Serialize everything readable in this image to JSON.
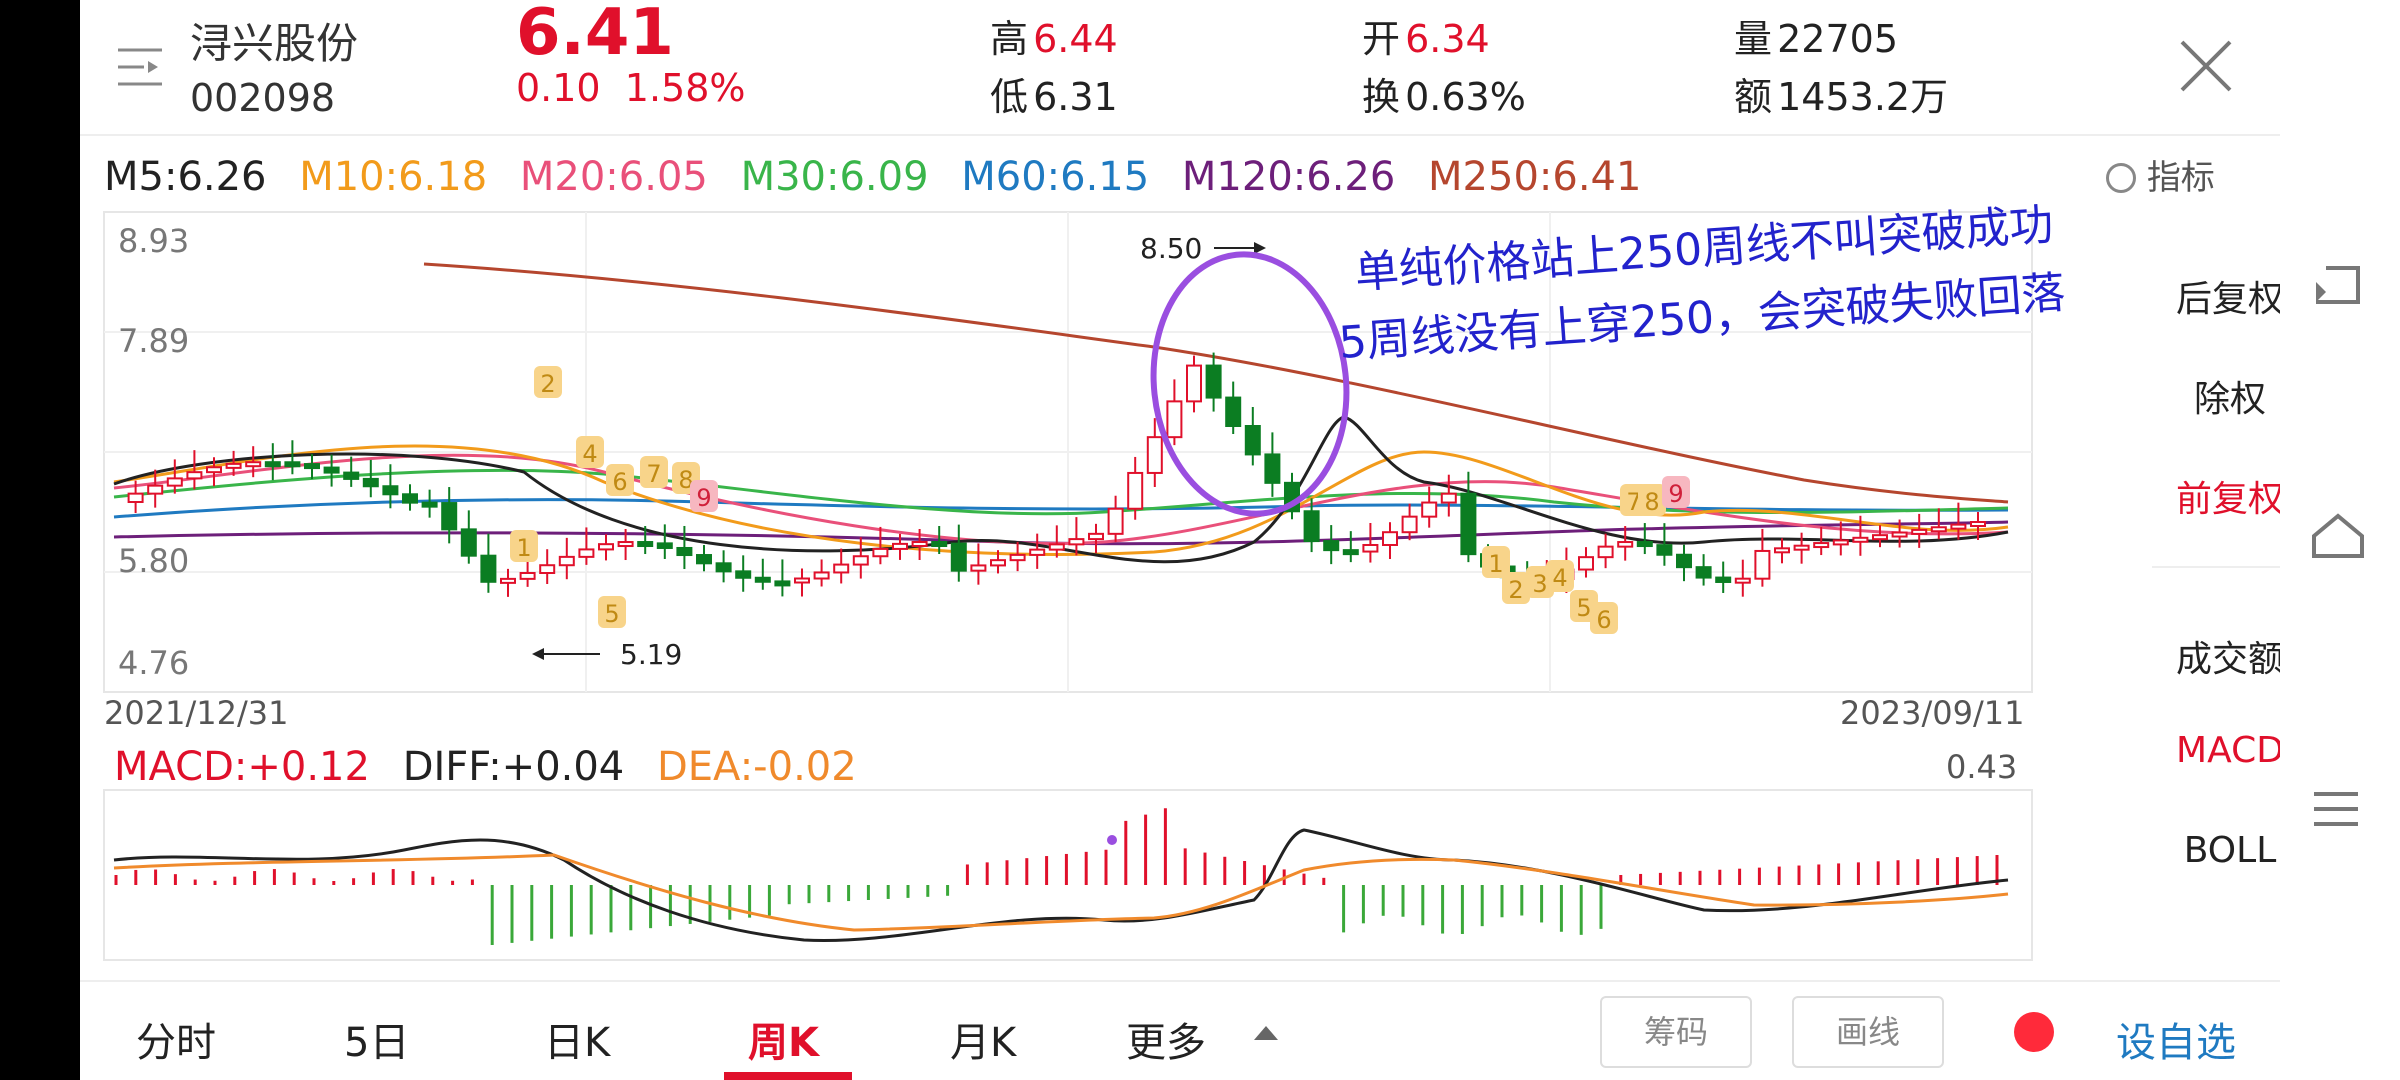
{
  "stock": {
    "name": "浔兴股份",
    "code": "002098",
    "price": "6.41",
    "change": "0.10",
    "change_pct": "1.58%"
  },
  "quote": {
    "high_label": "高",
    "high": "6.44",
    "low_label": "低",
    "low": "6.31",
    "open_label": "开",
    "open": "6.34",
    "turnover_label": "换",
    "turnover": "0.63%",
    "volume_label": "量",
    "volume": "22705",
    "amount_label": "额",
    "amount": "1453.2万"
  },
  "ma": {
    "m5": "M5:6.26",
    "m10": "M10:6.18",
    "m20": "M20:6.05",
    "m30": "M30:6.09",
    "m60": "M60:6.15",
    "m120": "M120:6.26",
    "m250": "M250:6.41"
  },
  "colors": {
    "up": "#e0102b",
    "down": "#0b7d22",
    "m5": "#222222",
    "m10": "#f29b1b",
    "m20": "#e9507a",
    "m30": "#39b54a",
    "m60": "#1f7ac1",
    "m120": "#6d1f7a",
    "m250": "#b5462e",
    "annotation": "#2222cc",
    "circle": "#9a4ee0"
  },
  "indicator_label": "指标",
  "side_panel": {
    "items": [
      "后复权",
      "除权",
      "前复权"
    ],
    "active": "前复权",
    "sub_items": [
      "成交额",
      "MACD",
      "BOLL"
    ],
    "sub_active": "MACD"
  },
  "chart": {
    "y_ticks": [
      "8.93",
      "7.89",
      "5.80",
      "4.76"
    ],
    "date_start": "2021/12/31",
    "date_end": "2023/09/11",
    "high_label": "8.50",
    "low_label": "5.19",
    "annotation_line1": "单纯价格站上250周线不叫突破成功",
    "annotation_line2": "5周线没有上穿250，会突破失败回落",
    "signal_badges": [
      {
        "text": "2"
      },
      {
        "text": "4"
      },
      {
        "text": "6"
      },
      {
        "text": "7"
      },
      {
        "text": "8"
      },
      {
        "text": "9"
      },
      {
        "text": "1"
      },
      {
        "text": "5"
      },
      {
        "text": "7"
      },
      {
        "text": "8"
      },
      {
        "text": "9"
      },
      {
        "text": "1"
      },
      {
        "text": "2"
      },
      {
        "text": "3"
      },
      {
        "text": "4"
      },
      {
        "text": "5"
      },
      {
        "text": "6"
      }
    ]
  },
  "macd": {
    "macd": "MACD:+0.12",
    "diff": "DIFF:+0.04",
    "dea": "DEA:-0.02",
    "max": "0.43"
  },
  "bottom_tabs": [
    "分时",
    "5日",
    "日K",
    "周K",
    "月K",
    "更多"
  ],
  "active_tab": "周K",
  "tools": {
    "chips": "筹码",
    "draw": "画线",
    "add_watch": "设自选"
  }
}
